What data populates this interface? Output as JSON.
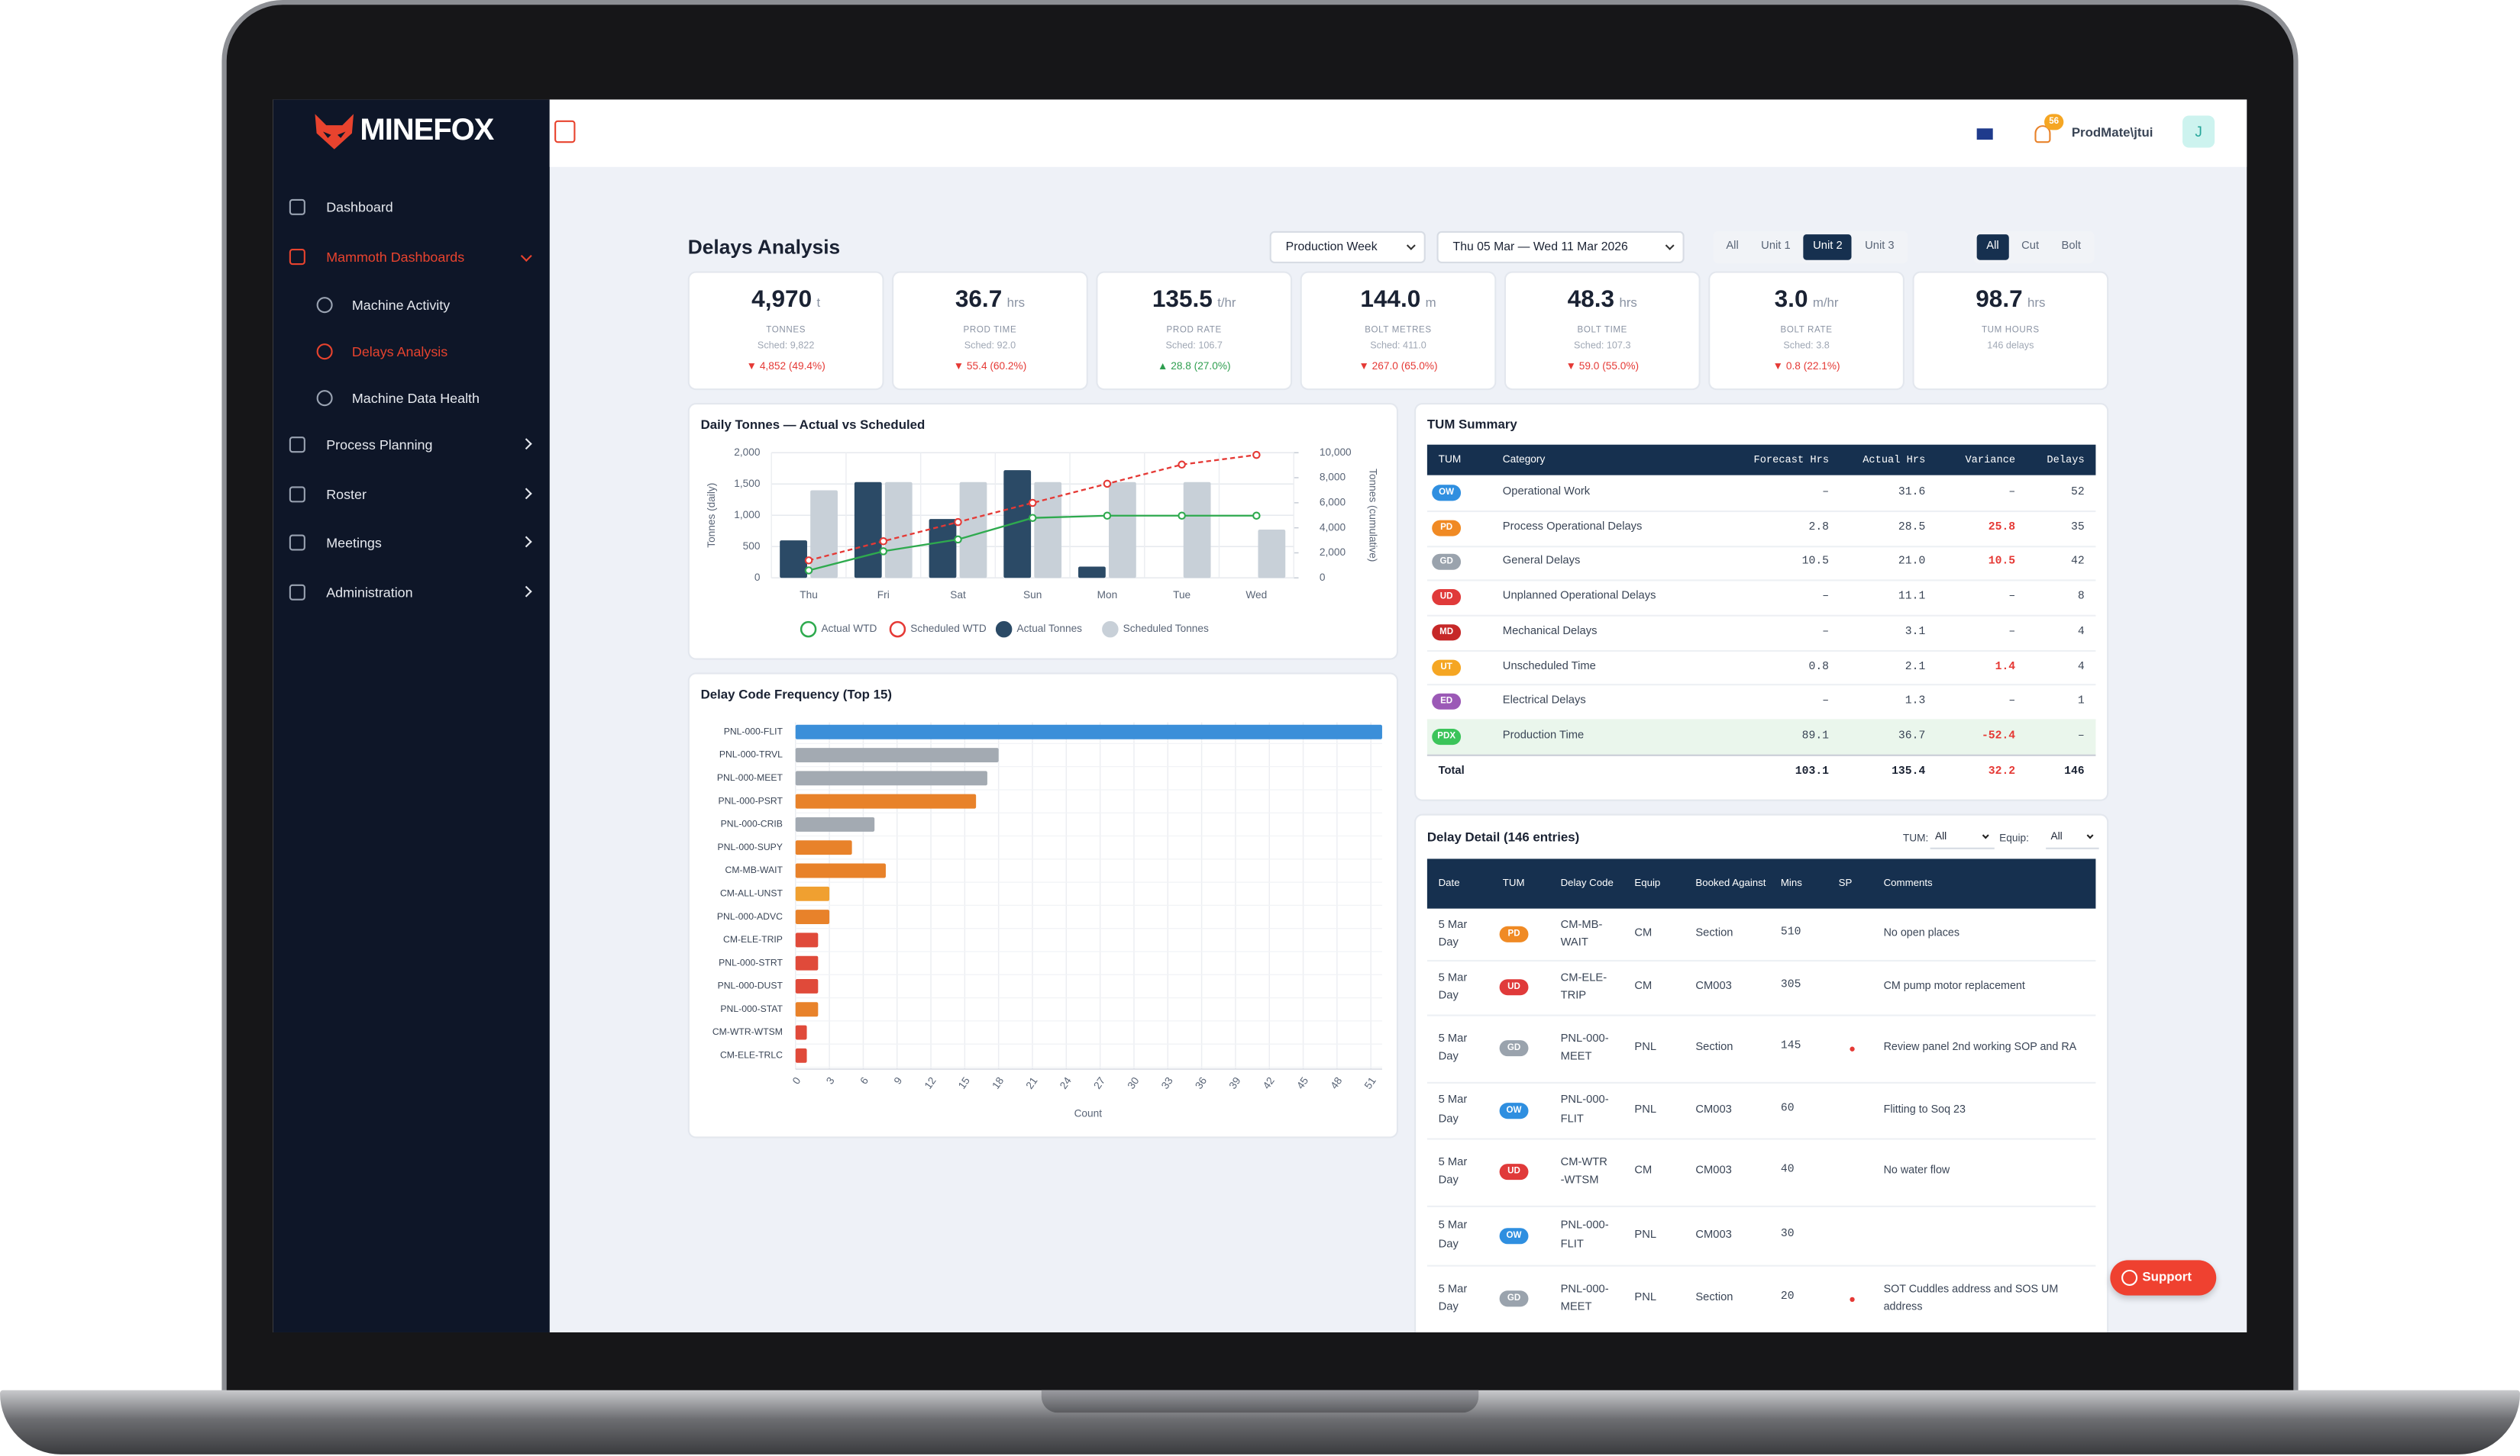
{
  "brand": "MINEFOX",
  "nav": [
    {
      "label": "Dashboard"
    },
    {
      "label": "Mammoth Dashboards",
      "active": true,
      "expandable": true,
      "children": [
        {
          "label": "Machine Activity"
        },
        {
          "label": "Delays Analysis",
          "active": true
        },
        {
          "label": "Machine Data Health"
        }
      ]
    },
    {
      "label": "Process Planning",
      "expandable": true
    },
    {
      "label": "Roster",
      "expandable": true
    },
    {
      "label": "Meetings",
      "expandable": true
    },
    {
      "label": "Administration",
      "expandable": true
    }
  ],
  "topbar": {
    "notifications": "56",
    "user": "ProdMate\\jtui",
    "avatar": "J"
  },
  "page_title": "Delays Analysis",
  "filters": {
    "period": "Production Week",
    "range": "Thu 05 Mar — Wed 11 Mar 2026",
    "units": [
      "All",
      "Unit 1",
      "Unit 2",
      "Unit 3"
    ],
    "unit_active": 2,
    "types": [
      "All",
      "Cut",
      "Bolt"
    ],
    "type_active": 0
  },
  "kpis": [
    {
      "value": "4,970",
      "unit": "t",
      "label": "TONNES",
      "sched": "Sched: 9,822",
      "delta": "▼ 4,852 (49.4%)",
      "delta_color": "#e53935"
    },
    {
      "value": "36.7",
      "unit": "hrs",
      "label": "PROD TIME",
      "sched": "Sched: 92.0",
      "delta": "▼ 55.4 (60.2%)",
      "delta_color": "#e53935"
    },
    {
      "value": "135.5",
      "unit": "t/hr",
      "label": "PROD RATE",
      "sched": "Sched: 106.7",
      "delta": "▲ 28.8 (27.0%)",
      "delta_color": "#2e9e4f"
    },
    {
      "value": "144.0",
      "unit": "m",
      "label": "BOLT METRES",
      "sched": "Sched: 411.0",
      "delta": "▼ 267.0 (65.0%)",
      "delta_color": "#e53935"
    },
    {
      "value": "48.3",
      "unit": "hrs",
      "label": "BOLT TIME",
      "sched": "Sched: 107.3",
      "delta": "▼ 59.0 (55.0%)",
      "delta_color": "#e53935"
    },
    {
      "value": "3.0",
      "unit": "m/hr",
      "label": "BOLT RATE",
      "sched": "Sched: 3.8",
      "delta": "▼ 0.8 (22.1%)",
      "delta_color": "#e53935"
    },
    {
      "value": "98.7",
      "unit": "hrs",
      "label": "TUM HOURS",
      "sched": "146 delays"
    }
  ],
  "chart_data": [
    {
      "type": "bar",
      "title": "Daily Tonnes — Actual vs Scheduled",
      "categories": [
        "Thu",
        "Fri",
        "Sat",
        "Sun",
        "Mon",
        "Tue",
        "Wed"
      ],
      "series": [
        {
          "name": "Actual WTD",
          "kind": "line",
          "axis": "y2",
          "color": "#2eaa4e",
          "values": [
            600,
            2130,
            3070,
            4790,
            4970,
            4970,
            4970
          ]
        },
        {
          "name": "Scheduled WTD",
          "kind": "line",
          "axis": "y2",
          "dashed": true,
          "color": "#e53935",
          "values": [
            1400,
            2930,
            4460,
            5990,
            7520,
            9050,
            9822
          ]
        },
        {
          "name": "Actual Tonnes",
          "kind": "bar",
          "color": "#2b4a66",
          "values": [
            600,
            1530,
            940,
            1720,
            180,
            null,
            null
          ]
        },
        {
          "name": "Scheduled Tonnes",
          "kind": "bar",
          "color": "#c8d0d8",
          "values": [
            1400,
            1530,
            1530,
            1530,
            1530,
            1530,
            772
          ]
        }
      ],
      "ylim": [
        0,
        2000
      ],
      "yticks": [
        0,
        500,
        {
          "value": 1000,
          "label": "1,000"
        },
        {
          "value": 1500,
          "label": "1,500"
        },
        {
          "value": 2000,
          "label": "2,000"
        }
      ],
      "y2lim": [
        0,
        10000
      ],
      "y2ticks": [
        0,
        {
          "value": 2000,
          "label": "2,000"
        },
        {
          "value": 4000,
          "label": "4,000"
        },
        {
          "value": 6000,
          "label": "6,000"
        },
        {
          "value": 8000,
          "label": "8,000"
        },
        {
          "value": 10000,
          "label": "10,000"
        }
      ],
      "ylabel": "Tonnes (daily)",
      "y2label": "Tonnes (cumulative)",
      "grid": true
    },
    {
      "type": "barh",
      "title": "Delay Code Frequency (Top 15)",
      "categories": [
        "PNL-000-FLIT",
        "PNL-000-TRVL",
        "PNL-000-MEET",
        "PNL-000-PSRT",
        "PNL-000-CRIB",
        "PNL-000-SUPY",
        "CM-MB-WAIT",
        "CM-ALL-UNST",
        "PNL-000-ADVC",
        "CM-ELE-TRIP",
        "PNL-000-STRT",
        "PNL-000-DUST",
        "PNL-000-STAT",
        "CM-WTR-WTSM",
        "CM-ELE-TRLC"
      ],
      "values": [
        52,
        18,
        17,
        16,
        7,
        5,
        8,
        3,
        3,
        2,
        2,
        2,
        2,
        1,
        1
      ],
      "colors": [
        "#3b8fd9",
        "#a3aab2",
        "#a3aab2",
        "#e8822a",
        "#a3aab2",
        "#e8822a",
        "#e8822a",
        "#f0a030",
        "#e8822a",
        "#e04a3a",
        "#e04a3a",
        "#e04a3a",
        "#e8822a",
        "#e04a3a",
        "#e04a3a"
      ],
      "xlim": [
        0,
        52
      ],
      "xticks": [
        0,
        3,
        6,
        9,
        12,
        15,
        18,
        21,
        24,
        27,
        30,
        33,
        36,
        39,
        42,
        45,
        48,
        51
      ],
      "xlabel": "Count",
      "grid": true
    }
  ],
  "tum_summary": {
    "title": "TUM Summary",
    "columns": [
      "TUM",
      "Category",
      "Forecast Hrs",
      "Actual Hrs",
      "Variance",
      "Delays"
    ],
    "rows": [
      [
        "OW",
        "Operational Work",
        "–",
        "31.6",
        "–",
        "52"
      ],
      [
        "PD",
        "Process Operational Delays",
        "2.8",
        "28.5",
        "25.8",
        "35"
      ],
      [
        "GD",
        "General Delays",
        "10.5",
        "21.0",
        "10.5",
        "42"
      ],
      [
        "UD",
        "Unplanned Operational Delays",
        "–",
        "11.1",
        "–",
        "8"
      ],
      [
        "MD",
        "Mechanical Delays",
        "–",
        "3.1",
        "–",
        "4"
      ],
      [
        "UT",
        "Unscheduled Time",
        "0.8",
        "2.1",
        "1.4",
        "4"
      ],
      [
        "ED",
        "Electrical Delays",
        "–",
        "1.3",
        "–",
        "1"
      ],
      [
        "PDX",
        "Production Time",
        "89.1",
        "36.7",
        "-52.4",
        "–"
      ]
    ],
    "badge_colors": {
      "OW": "#2f8fe0",
      "PD": "#f08a24",
      "GD": "#9aa3ad",
      "UD": "#e03a3a",
      "MD": "#c62828",
      "UT": "#f5a623",
      "ED": "#9b59b6",
      "PDX": "#3bc45a"
    },
    "highlight_row": 7,
    "total": [
      "Total",
      "103.1",
      "135.4",
      "32.2",
      "146"
    ],
    "variance_color": "#e53935"
  },
  "delay_detail": {
    "title": "Delay Detail (146 entries)",
    "tum_filter_label": "TUM:",
    "tum_filter": "All",
    "equip_filter_label": "Equip:",
    "equip_filter": "All",
    "columns": [
      "Date",
      "TUM",
      "Delay Code",
      "Equip",
      "Booked Against",
      "Mins",
      "SP",
      "Comments"
    ],
    "rows": [
      {
        "date": "5 Mar Day",
        "tum": "PD",
        "code": "CM-MB-WAIT",
        "equip": "CM",
        "booked": "Section",
        "mins": "510",
        "sp": false,
        "comment": "No open places"
      },
      {
        "date": "5 Mar Day",
        "tum": "UD",
        "code": "CM-ELE-TRIP",
        "equip": "CM",
        "booked": "CM003",
        "mins": "305",
        "sp": false,
        "comment": "CM pump motor replacement"
      },
      {
        "date": "5 Mar Day",
        "tum": "GD",
        "code": "PNL-000-MEET",
        "equip": "PNL",
        "booked": "Section",
        "mins": "145",
        "sp": true,
        "comment": "Review panel 2nd working SOP and RA"
      },
      {
        "date": "5 Mar Day",
        "tum": "OW",
        "code": "PNL-000-FLIT",
        "equip": "PNL",
        "booked": "CM003",
        "mins": "60",
        "sp": false,
        "comment": "Flitting to Soq 23"
      },
      {
        "date": "5 Mar Day",
        "tum": "UD",
        "code": "CM-WTR-WTSM",
        "equip": "CM",
        "booked": "CM003",
        "mins": "40",
        "sp": false,
        "comment": "No water flow"
      },
      {
        "date": "5 Mar Day",
        "tum": "OW",
        "code": "PNL-000-FLIT",
        "equip": "PNL",
        "booked": "CM003",
        "mins": "30",
        "sp": false,
        "comment": ""
      },
      {
        "date": "5 Mar Day",
        "tum": "GD",
        "code": "PNL-000-MEET",
        "equip": "PNL",
        "booked": "Section",
        "mins": "20",
        "sp": true,
        "comment": "SOT Cuddles address and SOS UM address"
      }
    ]
  },
  "support": "Support"
}
